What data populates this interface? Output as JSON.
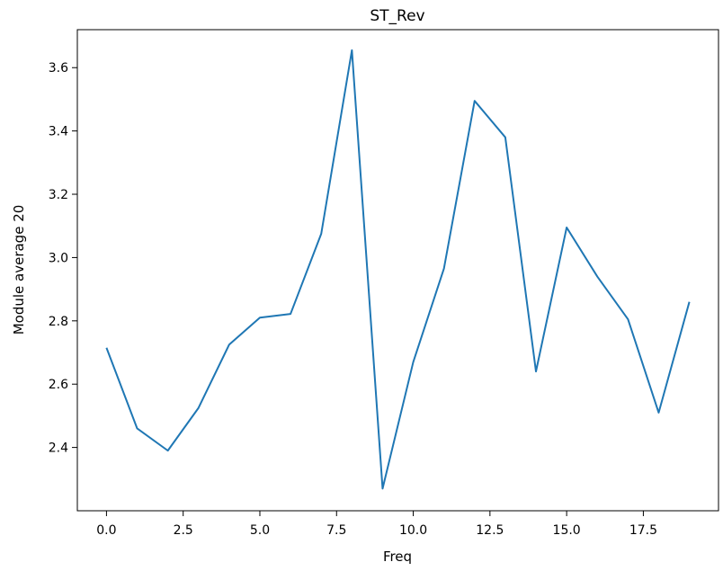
{
  "chart_data": {
    "type": "line",
    "title": "ST_Rev",
    "xlabel": "Freq",
    "ylabel": "Module average 20",
    "x": [
      0,
      1,
      2,
      3,
      4,
      5,
      6,
      7,
      8,
      9,
      10,
      11,
      12,
      13,
      14,
      15,
      16,
      17,
      18,
      19
    ],
    "series": [
      {
        "values": [
          2.715,
          2.46,
          2.39,
          2.525,
          2.725,
          2.81,
          2.822,
          3.075,
          3.655,
          2.27,
          2.67,
          2.965,
          3.495,
          3.38,
          2.64,
          3.095,
          2.94,
          2.805,
          2.51,
          2.86
        ]
      }
    ],
    "xlim": [
      -0.95,
      19.95
    ],
    "ylim": [
      2.2,
      3.72
    ],
    "xticks": [
      0.0,
      2.5,
      5.0,
      7.5,
      10.0,
      12.5,
      15.0,
      17.5
    ],
    "xtick_labels": [
      "0.0",
      "2.5",
      "5.0",
      "7.5",
      "10.0",
      "12.5",
      "15.0",
      "17.5"
    ],
    "yticks": [
      2.4,
      2.6,
      2.8,
      3.0,
      3.2,
      3.4,
      3.6
    ],
    "ytick_labels": [
      "2.4",
      "2.6",
      "2.8",
      "3.0",
      "3.2",
      "3.4",
      "3.6"
    ],
    "grid": false,
    "line_color": "#1f77b4"
  }
}
